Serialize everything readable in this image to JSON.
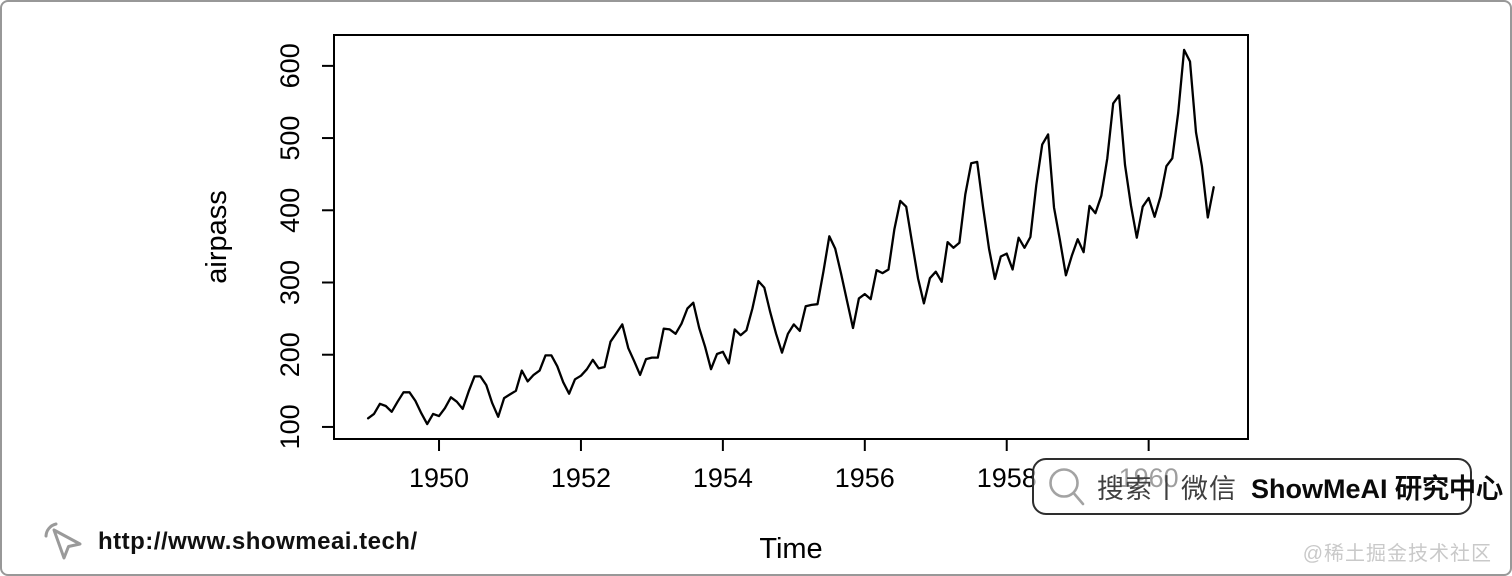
{
  "chart_data": {
    "type": "line",
    "title": "",
    "xlabel": "Time",
    "ylabel": "airpass",
    "series_name": "airpass",
    "x_start": 1949,
    "frequency": 12,
    "values": [
      112,
      118,
      132,
      129,
      121,
      135,
      148,
      148,
      136,
      119,
      104,
      118,
      115,
      126,
      141,
      135,
      125,
      149,
      170,
      170,
      158,
      133,
      114,
      140,
      145,
      150,
      178,
      163,
      172,
      178,
      199,
      199,
      184,
      162,
      146,
      166,
      171,
      180,
      193,
      181,
      183,
      218,
      230,
      242,
      209,
      191,
      172,
      194,
      196,
      196,
      236,
      235,
      229,
      243,
      264,
      272,
      237,
      211,
      180,
      201,
      204,
      188,
      235,
      227,
      234,
      264,
      302,
      293,
      259,
      229,
      203,
      229,
      242,
      233,
      267,
      269,
      270,
      315,
      364,
      347,
      312,
      274,
      237,
      278,
      284,
      277,
      317,
      313,
      318,
      374,
      413,
      405,
      355,
      306,
      271,
      306,
      315,
      301,
      356,
      348,
      355,
      422,
      465,
      467,
      404,
      347,
      305,
      336,
      340,
      318,
      362,
      348,
      363,
      435,
      491,
      505,
      404,
      359,
      310,
      337,
      360,
      342,
      406,
      396,
      420,
      472,
      548,
      559,
      463,
      407,
      362,
      405,
      417,
      391,
      419,
      461,
      472,
      535,
      622,
      606,
      508,
      461,
      390,
      432
    ],
    "x_ticks": [
      1950,
      1952,
      1954,
      1956,
      1958,
      1960
    ],
    "y_ticks": [
      100,
      200,
      300,
      400,
      500,
      600
    ],
    "xlim": [
      1948.52,
      1961.4
    ],
    "ylim": [
      83.3,
      642.7
    ],
    "grid": false,
    "legend": "none",
    "line_color": "#000000",
    "frame_color": "#000000"
  },
  "watermark": {
    "icon": "magnifier-icon",
    "search_text": "搜索丨微信",
    "brand_text": "ShowMeAI 研究中心"
  },
  "footer": {
    "cursor_icon": "cursor-click-icon",
    "url": "http://www.showmeai.tech/",
    "credit": "@稀土掘金技术社区"
  }
}
